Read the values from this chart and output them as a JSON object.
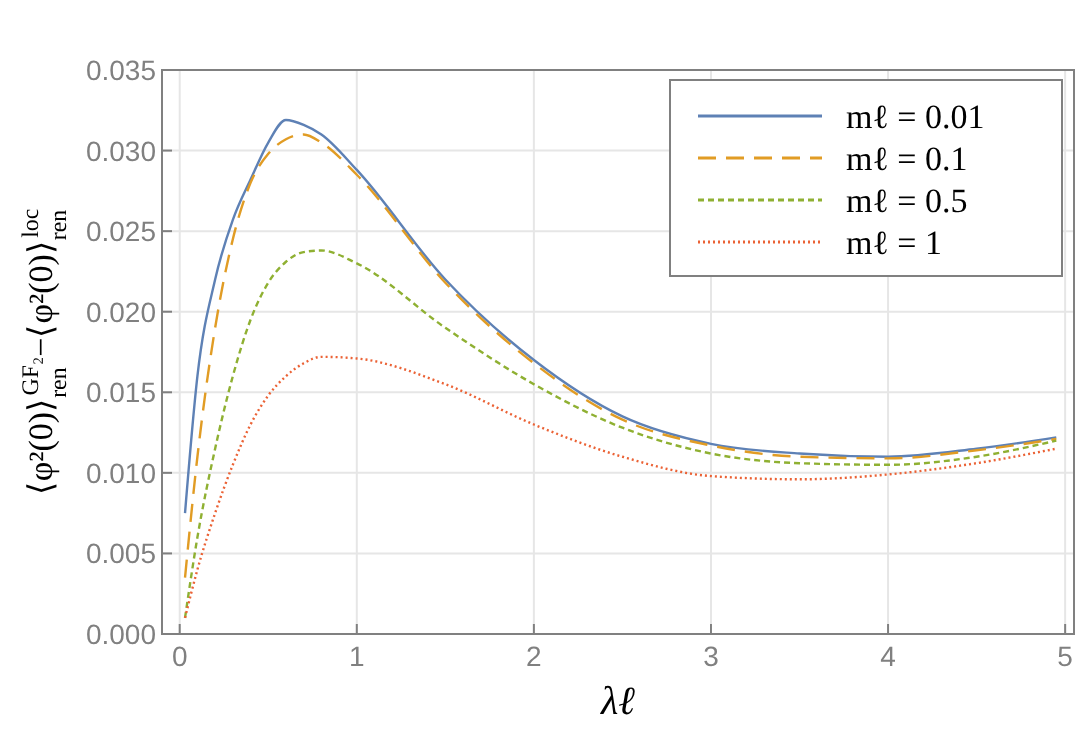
{
  "chart_data": {
    "type": "line",
    "xlabel": "λℓ",
    "ylabel": "⟨φ²(0)⟩$_{ren}$$^{GF₂}$−⟨φ²(0)⟩$_{ren}$$^{loc}$",
    "xlim": [
      -0.1,
      5.05
    ],
    "ylim": [
      0,
      0.035
    ],
    "xticks": [
      0,
      1,
      2,
      3,
      4,
      5
    ],
    "yticks": [
      {
        "value": 0,
        "label": "0.000"
      },
      {
        "value": 0.005,
        "label": "0.005"
      },
      {
        "value": 0.01,
        "label": "0.010"
      },
      {
        "value": 0.015,
        "label": "0.015"
      },
      {
        "value": 0.02,
        "label": "0.020"
      },
      {
        "value": 0.025,
        "label": "0.025"
      },
      {
        "value": 0.03,
        "label": "0.030"
      },
      {
        "value": 0.035,
        "label": "0.035"
      }
    ],
    "grid": true,
    "legend": "top right",
    "x": [
      0.03,
      0.1,
      0.2,
      0.3,
      0.4,
      0.5,
      0.6,
      0.7,
      0.8,
      1.0,
      1.5,
      2.0,
      2.5,
      3.0,
      3.5,
      4.0,
      4.5,
      4.95
    ],
    "series": [
      {
        "name": "mℓ = 0.01",
        "color": "#5e81b5",
        "line_style": "solid",
        "values": [
          0.0075,
          0.016,
          0.022,
          0.0257,
          0.0282,
          0.0305,
          0.0319,
          0.0316,
          0.031,
          0.0288,
          0.022,
          0.017,
          0.0135,
          0.0118,
          0.0112,
          0.011,
          0.0115,
          0.0122
        ]
      },
      {
        "name": "mℓ = 0.1",
        "color": "#e19c24",
        "line_style": "dashed",
        "values": [
          0.0035,
          0.011,
          0.019,
          0.0245,
          0.028,
          0.0298,
          0.0307,
          0.031,
          0.0305,
          0.0285,
          0.0218,
          0.0168,
          0.0133,
          0.0117,
          0.011,
          0.0109,
          0.0114,
          0.0121
        ]
      },
      {
        "name": "mℓ = 0.5",
        "color": "#8fb032",
        "line_style": "shortdash",
        "values": [
          0.001,
          0.006,
          0.0115,
          0.016,
          0.0195,
          0.0218,
          0.0231,
          0.0237,
          0.0238,
          0.023,
          0.019,
          0.0155,
          0.0128,
          0.0112,
          0.0106,
          0.0105,
          0.011,
          0.012
        ]
      },
      {
        "name": "mℓ = 1",
        "color": "#eb6235",
        "line_style": "dotted",
        "values": [
          0.001,
          0.004,
          0.0075,
          0.0105,
          0.013,
          0.0148,
          0.016,
          0.0168,
          0.0172,
          0.0171,
          0.0155,
          0.013,
          0.011,
          0.0098,
          0.0096,
          0.0099,
          0.0106,
          0.0115
        ]
      }
    ]
  }
}
